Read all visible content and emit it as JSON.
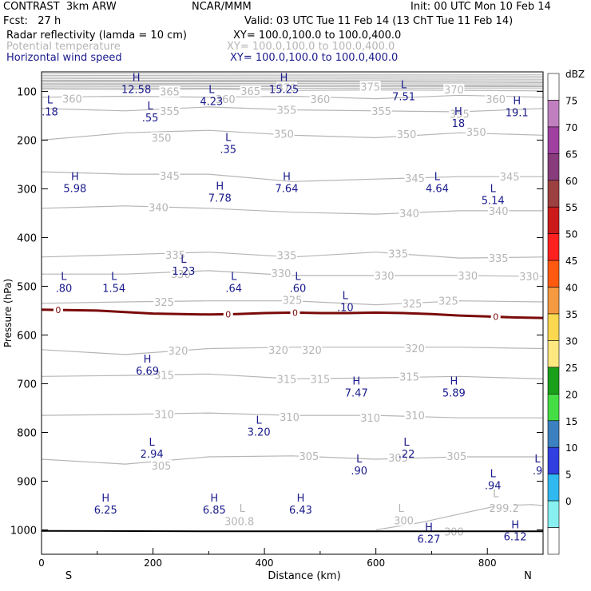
{
  "header": {
    "model": "CONTRAST  3km ARW",
    "org": "NCAR/MMM",
    "init": "Init: 00 UTC Mon 10 Feb 14",
    "fcst": "Fcst:   27 h",
    "valid": "Valid: 03 UTC Tue 11 Feb 14 (13 ChT Tue 11 Feb 14)",
    "field1": "Radar reflectivity (lamda = 10 cm)",
    "field1_xy": "XY= 100.0,100.0 to 100.0,400.0",
    "field2": "Potential temperature",
    "field2_xy": "XY= 100.0,100.0 to 100.0,400.0",
    "field3": "Horizontal wind speed",
    "field3_xy": "XY= 100.0,100.0 to 100.0,400.0"
  },
  "colors": {
    "theta": "#b5b5b5",
    "wind": "#1a1a8c",
    "freezing": "#7a0a0a"
  },
  "chart_data": {
    "type": "cross-section",
    "xlabel": "Distance (km)",
    "ylabel": "Pressure (hPa)",
    "xlim": [
      0,
      900
    ],
    "ylim": [
      1050,
      60
    ],
    "x_ticks": [
      0,
      200,
      400,
      600,
      800
    ],
    "y_ticks": [
      100,
      200,
      300,
      400,
      500,
      600,
      700,
      800,
      900,
      1000
    ],
    "x_endpoints": {
      "left": "S",
      "right": "N"
    },
    "colorbar": {
      "unit": "dBZ",
      "levels": [
        75,
        70,
        65,
        60,
        55,
        50,
        45,
        40,
        35,
        30,
        25,
        20,
        15,
        10,
        5,
        0
      ],
      "colors": [
        "#ffffff",
        "#c080c0",
        "#a040a0",
        "#883c7c",
        "#9c4040",
        "#cc1a1a",
        "#ff2020",
        "#ff5a10",
        "#f59a40",
        "#fcd850",
        "#ffe880",
        "#1aa01a",
        "#44dd44",
        "#3c80c0",
        "#3040e0",
        "#30b8f0",
        "#88f0f0",
        "#ffffff"
      ]
    },
    "theta_isentropes": [
      {
        "value": 375,
        "points": [
          [
            0,
            78
          ],
          [
            200,
            78
          ],
          [
            400,
            79
          ],
          [
            600,
            80
          ],
          [
            900,
            82
          ]
        ]
      },
      {
        "value": 370,
        "points": [
          [
            0,
            86
          ],
          [
            200,
            86
          ],
          [
            400,
            87
          ],
          [
            600,
            88
          ],
          [
            900,
            90
          ]
        ]
      },
      {
        "value": 365,
        "points": [
          [
            0,
            95
          ],
          [
            150,
            96
          ],
          [
            300,
            95
          ],
          [
            450,
            98
          ],
          [
            600,
            97
          ],
          [
            900,
            99
          ]
        ]
      },
      {
        "value": 360,
        "points": [
          [
            0,
            112
          ],
          [
            150,
            110
          ],
          [
            300,
            112
          ],
          [
            450,
            110
          ],
          [
            600,
            115
          ],
          [
            750,
            108
          ],
          [
            900,
            112
          ]
        ]
      },
      {
        "value": 355,
        "points": [
          [
            0,
            135
          ],
          [
            150,
            140
          ],
          [
            300,
            132
          ],
          [
            450,
            138
          ],
          [
            600,
            140
          ],
          [
            750,
            142
          ],
          [
            900,
            135
          ]
        ]
      },
      {
        "value": 350,
        "points": [
          [
            0,
            200
          ],
          [
            150,
            185
          ],
          [
            300,
            180
          ],
          [
            450,
            190
          ],
          [
            600,
            195
          ],
          [
            750,
            185
          ],
          [
            900,
            190
          ]
        ]
      },
      {
        "value": 345,
        "points": [
          [
            0,
            265
          ],
          [
            150,
            270
          ],
          [
            300,
            270
          ],
          [
            450,
            285
          ],
          [
            600,
            280
          ],
          [
            750,
            275
          ],
          [
            900,
            275
          ]
        ]
      },
      {
        "value": 340,
        "points": [
          [
            0,
            340
          ],
          [
            150,
            335
          ],
          [
            300,
            340
          ],
          [
            450,
            348
          ],
          [
            600,
            352
          ],
          [
            750,
            345
          ],
          [
            900,
            345
          ]
        ]
      },
      {
        "value": 335,
        "points": [
          [
            0,
            440
          ],
          [
            150,
            435
          ],
          [
            300,
            430
          ],
          [
            450,
            440
          ],
          [
            600,
            430
          ],
          [
            750,
            442
          ],
          [
            900,
            440
          ]
        ]
      },
      {
        "value": 330,
        "points": [
          [
            0,
            475
          ],
          [
            150,
            475
          ],
          [
            300,
            468
          ],
          [
            450,
            478
          ],
          [
            600,
            478
          ],
          [
            750,
            478
          ],
          [
            900,
            480
          ]
        ]
      },
      {
        "value": 325,
        "points": [
          [
            0,
            535
          ],
          [
            150,
            532
          ],
          [
            300,
            530
          ],
          [
            450,
            530
          ],
          [
            600,
            538
          ],
          [
            750,
            530
          ],
          [
            900,
            532
          ]
        ]
      },
      {
        "value": 320,
        "points": [
          [
            0,
            630
          ],
          [
            150,
            640
          ],
          [
            300,
            628
          ],
          [
            450,
            625
          ],
          [
            600,
            625
          ],
          [
            750,
            625
          ],
          [
            900,
            628
          ]
        ]
      },
      {
        "value": 315,
        "points": [
          [
            0,
            685
          ],
          [
            150,
            683
          ],
          [
            300,
            680
          ],
          [
            450,
            690
          ],
          [
            600,
            688
          ],
          [
            750,
            685
          ],
          [
            900,
            690
          ]
        ]
      },
      {
        "value": 310,
        "points": [
          [
            0,
            765
          ],
          [
            150,
            763
          ],
          [
            300,
            760
          ],
          [
            450,
            765
          ],
          [
            600,
            765
          ],
          [
            750,
            770
          ],
          [
            900,
            770
          ]
        ]
      },
      {
        "value": 305,
        "points": [
          [
            0,
            855
          ],
          [
            150,
            865
          ],
          [
            300,
            850
          ],
          [
            450,
            848
          ],
          [
            600,
            855
          ],
          [
            750,
            850
          ],
          [
            900,
            850
          ]
        ]
      }
    ],
    "theta_labels": [
      {
        "text": "360",
        "x": 55,
        "p": 115
      },
      {
        "text": "365",
        "x": 230,
        "p": 100
      },
      {
        "text": "360",
        "x": 330,
        "p": 116
      },
      {
        "text": "365",
        "x": 375,
        "p": 99
      },
      {
        "text": "370",
        "x": 440,
        "p": 92
      },
      {
        "text": "360",
        "x": 500,
        "p": 116
      },
      {
        "text": "375",
        "x": 590,
        "p": 90
      },
      {
        "text": "370",
        "x": 740,
        "p": 96
      },
      {
        "text": "360",
        "x": 815,
        "p": 116
      },
      {
        "text": "355",
        "x": 230,
        "p": 140
      },
      {
        "text": "355",
        "x": 440,
        "p": 138
      },
      {
        "text": "355",
        "x": 610,
        "p": 140
      },
      {
        "text": "355",
        "x": 750,
        "p": 146
      },
      {
        "text": "350",
        "x": 215,
        "p": 195
      },
      {
        "text": "350",
        "x": 435,
        "p": 187
      },
      {
        "text": "350",
        "x": 655,
        "p": 188
      },
      {
        "text": "350",
        "x": 780,
        "p": 183
      },
      {
        "text": "345",
        "x": 230,
        "p": 273
      },
      {
        "text": "345",
        "x": 670,
        "p": 278
      },
      {
        "text": "345",
        "x": 840,
        "p": 275
      },
      {
        "text": "340",
        "x": 210,
        "p": 338
      },
      {
        "text": "340",
        "x": 660,
        "p": 350
      },
      {
        "text": "340",
        "x": 820,
        "p": 345
      },
      {
        "text": "335",
        "x": 240,
        "p": 435
      },
      {
        "text": "335",
        "x": 440,
        "p": 436
      },
      {
        "text": "335",
        "x": 640,
        "p": 433
      },
      {
        "text": "335",
        "x": 820,
        "p": 442
      },
      {
        "text": "330",
        "x": 250,
        "p": 475
      },
      {
        "text": "330",
        "x": 430,
        "p": 473
      },
      {
        "text": "330",
        "x": 615,
        "p": 478
      },
      {
        "text": "330",
        "x": 765,
        "p": 478
      },
      {
        "text": "330",
        "x": 875,
        "p": 480
      },
      {
        "text": "325",
        "x": 220,
        "p": 532
      },
      {
        "text": "325",
        "x": 450,
        "p": 528
      },
      {
        "text": "325",
        "x": 665,
        "p": 535
      },
      {
        "text": "325",
        "x": 730,
        "p": 530
      },
      {
        "text": "320",
        "x": 245,
        "p": 632
      },
      {
        "text": "320",
        "x": 425,
        "p": 630
      },
      {
        "text": "320",
        "x": 485,
        "p": 630
      },
      {
        "text": "320",
        "x": 670,
        "p": 627
      },
      {
        "text": "315",
        "x": 220,
        "p": 682
      },
      {
        "text": "315",
        "x": 440,
        "p": 690
      },
      {
        "text": "315",
        "x": 500,
        "p": 690
      },
      {
        "text": "315",
        "x": 660,
        "p": 685
      },
      {
        "text": "310",
        "x": 220,
        "p": 762
      },
      {
        "text": "310",
        "x": 445,
        "p": 768
      },
      {
        "text": "310",
        "x": 590,
        "p": 770
      },
      {
        "text": "310",
        "x": 670,
        "p": 765
      },
      {
        "text": "305",
        "x": 215,
        "p": 868
      },
      {
        "text": "305",
        "x": 480,
        "p": 848
      },
      {
        "text": "305",
        "x": 640,
        "p": 852
      },
      {
        "text": "305",
        "x": 745,
        "p": 848
      },
      {
        "text": "300.8",
        "x": 355,
        "p": 982
      },
      {
        "text": "300",
        "x": 650,
        "p": 980
      },
      {
        "text": "300",
        "x": 740,
        "p": 1003
      },
      {
        "text": "299.2",
        "x": 830,
        "p": 955
      }
    ],
    "theta_marks": [
      {
        "text": "L",
        "x": 360,
        "p": 955
      },
      {
        "text": "L",
        "x": 645,
        "p": 955
      },
      {
        "text": "L",
        "x": 815,
        "p": 925
      }
    ],
    "freezing_level": {
      "label": "0",
      "label_positions": [
        30,
        335,
        455,
        815
      ],
      "points": [
        [
          0,
          548
        ],
        [
          100,
          550
        ],
        [
          150,
          553
        ],
        [
          200,
          556
        ],
        [
          250,
          557
        ],
        [
          300,
          558
        ],
        [
          350,
          557
        ],
        [
          400,
          555
        ],
        [
          455,
          554
        ],
        [
          500,
          555
        ],
        [
          550,
          555
        ],
        [
          600,
          554
        ],
        [
          650,
          555
        ],
        [
          700,
          557
        ],
        [
          750,
          560
        ],
        [
          800,
          562
        ],
        [
          850,
          564
        ],
        [
          900,
          565
        ]
      ]
    },
    "surface": {
      "points": [
        [
          0,
          1002
        ],
        [
          300,
          1003
        ],
        [
          900,
          1003
        ]
      ]
    },
    "wind_extrema": [
      {
        "type": "L",
        "value": ".18",
        "x": 15,
        "p": 128
      },
      {
        "type": "H",
        "value": "12.58",
        "x": 170,
        "p": 82
      },
      {
        "type": "L",
        "value": "4.23",
        "x": 305,
        "p": 107
      },
      {
        "type": "H",
        "value": "15.25",
        "x": 435,
        "p": 82
      },
      {
        "type": "L",
        "value": "7.51",
        "x": 650,
        "p": 97
      },
      {
        "type": "H",
        "value": "19.1",
        "x": 853,
        "p": 130
      },
      {
        "type": "L",
        "value": ".55",
        "x": 195,
        "p": 140
      },
      {
        "type": "H",
        "value": "18",
        "x": 748,
        "p": 152
      },
      {
        "type": "L",
        "value": ".35",
        "x": 335,
        "p": 205
      },
      {
        "type": "H",
        "value": "5.98",
        "x": 60,
        "p": 285
      },
      {
        "type": "H",
        "value": "7.78",
        "x": 320,
        "p": 305
      },
      {
        "type": "H",
        "value": "7.64",
        "x": 440,
        "p": 285
      },
      {
        "type": "L",
        "value": "4.64",
        "x": 710,
        "p": 285
      },
      {
        "type": "L",
        "value": "5.14",
        "x": 810,
        "p": 310
      },
      {
        "type": "L",
        "value": "1.23",
        "x": 255,
        "p": 455
      },
      {
        "type": "L",
        "value": ".80",
        "x": 40,
        "p": 490
      },
      {
        "type": "L",
        "value": "1.54",
        "x": 130,
        "p": 490
      },
      {
        "type": "L",
        "value": ".64",
        "x": 345,
        "p": 490
      },
      {
        "type": "L",
        "value": ".60",
        "x": 460,
        "p": 490
      },
      {
        "type": "L",
        "value": ".10",
        "x": 545,
        "p": 530
      },
      {
        "type": "H",
        "value": "6.69",
        "x": 190,
        "p": 660
      },
      {
        "type": "H",
        "value": "7.47",
        "x": 565,
        "p": 705
      },
      {
        "type": "H",
        "value": "5.89",
        "x": 740,
        "p": 705
      },
      {
        "type": "L",
        "value": "3.20",
        "x": 390,
        "p": 785
      },
      {
        "type": "L",
        "value": "2.94",
        "x": 198,
        "p": 830
      },
      {
        "type": "L",
        "value": ".22",
        "x": 655,
        "p": 830
      },
      {
        "type": "L",
        "value": ".90",
        "x": 570,
        "p": 865
      },
      {
        "type": "L",
        "value": ".9",
        "x": 890,
        "p": 865
      },
      {
        "type": "L",
        "value": ".94",
        "x": 810,
        "p": 895
      },
      {
        "type": "H",
        "value": "6.25",
        "x": 115,
        "p": 945
      },
      {
        "type": "H",
        "value": "6.85",
        "x": 310,
        "p": 945
      },
      {
        "type": "H",
        "value": "6.43",
        "x": 465,
        "p": 945
      },
      {
        "type": "H",
        "value": "6.27",
        "x": 695,
        "p": 1005
      },
      {
        "type": "H",
        "value": "6.12",
        "x": 850,
        "p": 1000
      }
    ]
  }
}
